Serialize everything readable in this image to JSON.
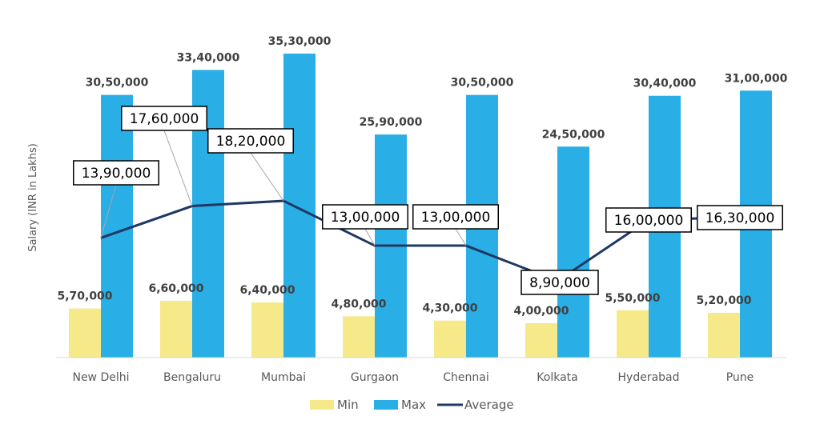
{
  "chart_data": {
    "type": "bar",
    "title": "",
    "xlabel": "",
    "ylabel": "Salary (INR in Lakhs)",
    "ylim": [
      0,
      3530000
    ],
    "grid": false,
    "legend_placement": "bottom",
    "categories": [
      "New Delhi",
      "Bengaluru",
      "Mumbai",
      "Gurgaon",
      "Chennai",
      "Kolkata",
      "Hyderabad",
      "Pune"
    ],
    "series": [
      {
        "name": "Min",
        "type": "bar",
        "color": "#F5E98A",
        "values": [
          570000,
          660000,
          640000,
          480000,
          430000,
          400000,
          550000,
          520000
        ],
        "labels": [
          "5,70,000",
          "6,60,000",
          "6,40,000",
          "4,80,000",
          "4,30,000",
          "4,00,000",
          "5,50,000",
          "5,20,000"
        ]
      },
      {
        "name": "Max",
        "type": "bar",
        "color": "#29AEE6",
        "values": [
          3050000,
          3340000,
          3530000,
          2590000,
          3050000,
          2450000,
          3040000,
          3100000
        ],
        "labels": [
          "30,50,000",
          "33,40,000",
          "35,30,000",
          "25,90,000",
          "30,50,000",
          "24,50,000",
          "30,40,000",
          "31,00,000"
        ]
      },
      {
        "name": "Average",
        "type": "line",
        "color": "#1F3864",
        "values": [
          1390000,
          1760000,
          1820000,
          1300000,
          1300000,
          890000,
          1600000,
          1630000
        ],
        "labels": [
          "13,90,000",
          "17,60,000",
          "18,20,000",
          "13,00,000",
          "13,00,000",
          "8,90,000",
          "16,00,000",
          "16,30,000"
        ]
      }
    ]
  }
}
